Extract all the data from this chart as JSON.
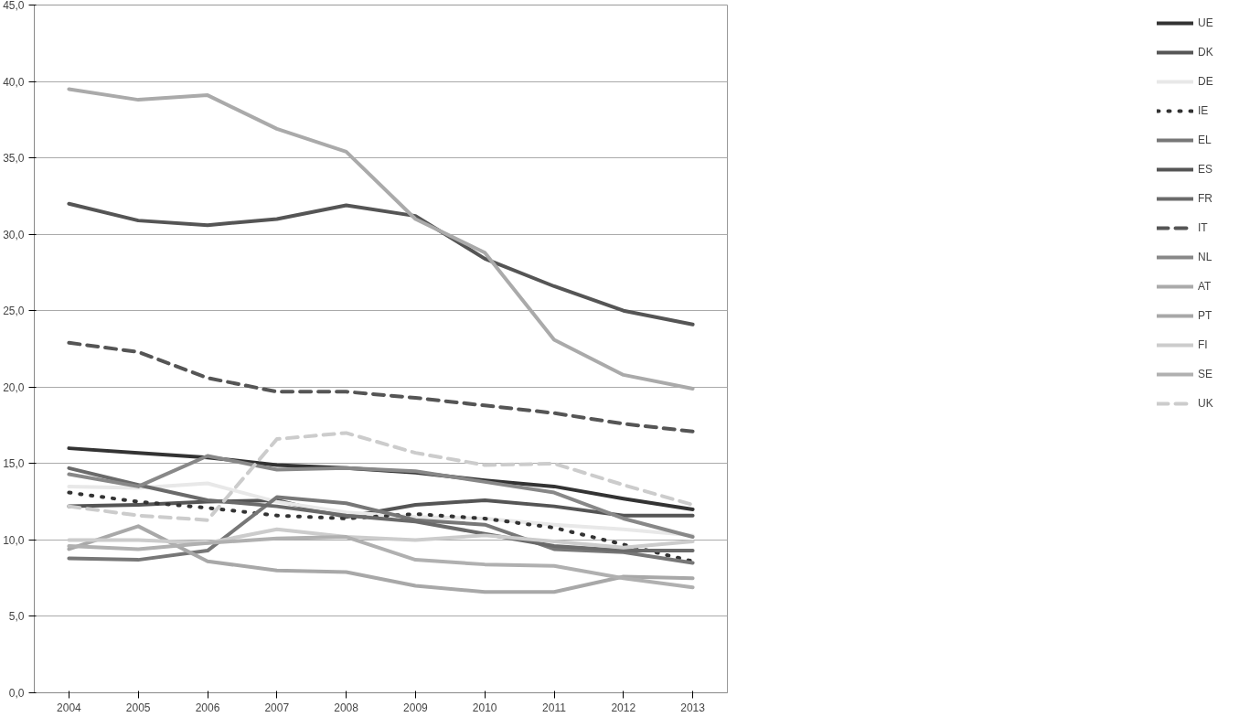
{
  "chart_data": {
    "type": "line",
    "categories": [
      "2004",
      "2005",
      "2006",
      "2007",
      "2008",
      "2009",
      "2010",
      "2011",
      "2012",
      "2013"
    ],
    "ylim": [
      0,
      45
    ],
    "yticks": [
      {
        "value": 0,
        "label": "0,0"
      },
      {
        "value": 5,
        "label": "5,0"
      },
      {
        "value": 10,
        "label": "10,0"
      },
      {
        "value": 15,
        "label": "15,0"
      },
      {
        "value": 20,
        "label": "20,0"
      },
      {
        "value": 25,
        "label": "25,0"
      },
      {
        "value": 30,
        "label": "30,0"
      },
      {
        "value": 35,
        "label": "35,0"
      },
      {
        "value": 40,
        "label": "40,0"
      },
      {
        "value": 45,
        "label": "45,0"
      }
    ],
    "grid": "y",
    "legend": "right",
    "marker": "none",
    "line_style": "solid",
    "series": [
      {
        "name": "UE",
        "color": "#333333",
        "values": [
          16.0,
          15.7,
          15.4,
          14.9,
          14.7,
          14.4,
          13.9,
          13.5,
          12.7,
          12.0
        ]
      },
      {
        "name": "DK",
        "color": "#555555",
        "values": [
          12.2,
          12.3,
          12.5,
          12.6,
          11.5,
          12.3,
          12.6,
          12.2,
          11.6,
          11.6
        ]
      },
      {
        "name": "DE",
        "color": "#e8e8e8",
        "values": [
          13.5,
          13.4,
          13.7,
          12.5,
          11.8,
          11.5,
          11.4,
          11.0,
          10.7,
          10.3
        ]
      },
      {
        "name": "IE",
        "color": "#333333",
        "line_style": "dotted",
        "values": [
          13.1,
          12.5,
          12.1,
          11.6,
          11.4,
          11.7,
          11.4,
          10.8,
          9.7,
          8.6
        ]
      },
      {
        "name": "EL",
        "color": "#777777",
        "values": [
          8.8,
          8.7,
          9.3,
          12.8,
          12.4,
          11.3,
          11.0,
          9.4,
          9.2,
          8.5
        ]
      },
      {
        "name": "ES",
        "color": "#555555",
        "values": [
          32.0,
          30.9,
          30.6,
          31.0,
          31.9,
          31.2,
          28.4,
          26.6,
          25.0,
          24.1
        ]
      },
      {
        "name": "FR",
        "color": "#6a6a6a",
        "values": [
          14.7,
          13.6,
          12.6,
          12.2,
          11.6,
          11.2,
          10.4,
          9.6,
          9.3,
          9.3
        ]
      },
      {
        "name": "IT",
        "color": "#555555",
        "line_style": "dashed",
        "values": [
          22.9,
          22.3,
          20.6,
          19.7,
          19.7,
          19.3,
          18.8,
          18.3,
          17.6,
          17.1
        ]
      },
      {
        "name": "NL",
        "color": "#888888",
        "values": [
          14.3,
          13.5,
          15.5,
          14.6,
          14.7,
          14.5,
          13.8,
          13.1,
          11.4,
          10.2
        ]
      },
      {
        "name": "AT",
        "color": "#aaaaaa",
        "values": [
          39.5,
          38.8,
          39.1,
          36.9,
          35.4,
          31.0,
          28.8,
          23.1,
          20.8,
          19.9
        ]
      },
      {
        "name": "PT",
        "color": "#a8a8a8",
        "values": [
          9.4,
          10.9,
          8.6,
          8.0,
          7.9,
          7.0,
          6.6,
          6.6,
          7.6,
          7.5
        ]
      },
      {
        "name": "FI",
        "color": "#cccccc",
        "values": [
          10.0,
          10.0,
          9.8,
          10.7,
          10.2,
          10.0,
          10.3,
          9.9,
          9.5,
          9.9
        ]
      },
      {
        "name": "SE",
        "color": "#b0b0b0",
        "values": [
          9.6,
          9.4,
          9.8,
          10.1,
          10.2,
          8.7,
          8.4,
          8.3,
          7.5,
          6.9
        ]
      },
      {
        "name": "UK",
        "color": "#cccccc",
        "line_style": "dashed",
        "values": [
          12.2,
          11.6,
          11.3,
          16.6,
          17.0,
          15.7,
          14.9,
          15.0,
          13.6,
          12.3
        ]
      }
    ]
  }
}
